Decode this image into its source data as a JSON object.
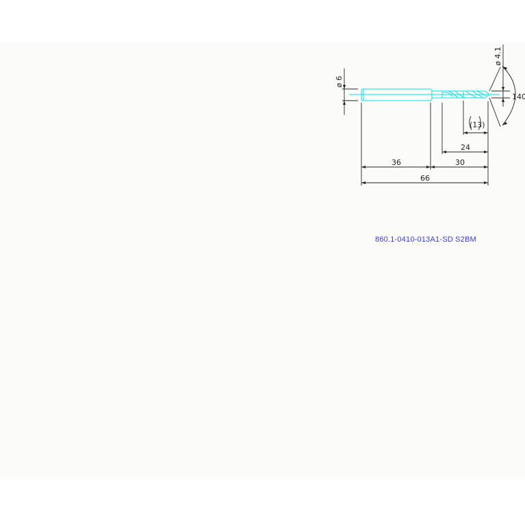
{
  "drawing": {
    "part_number": "860.1-0410-013A1-SD S2BM",
    "dimensions": {
      "shank_diameter": "ø 6",
      "tip_diameter": "ø 4.1",
      "point_angle": "140°",
      "flute_ref": "(13)",
      "flute_length": "24",
      "body_length": "30",
      "shank_length": "36",
      "overall_length": "66"
    },
    "colors": {
      "tool": "#00e5ee",
      "dimension": "#222222",
      "part_number": "#3a3ae0"
    }
  }
}
